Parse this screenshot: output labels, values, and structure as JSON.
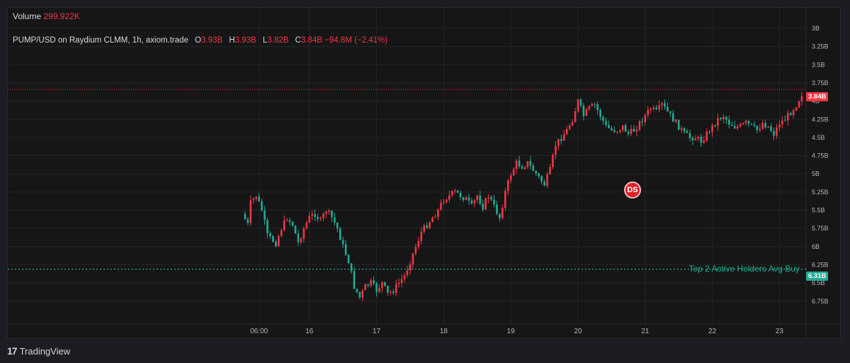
{
  "legend": {
    "volume_label": "Volume",
    "volume_value": "299.922K",
    "symbol": "PUMP/USD on Raydium CLMM, 1h, axiom.trade",
    "o_label": "O",
    "o_value": "3.93B",
    "h_label": "H",
    "h_value": "3.93B",
    "l_label": "L",
    "l_value": "3.82B",
    "c_label": "C",
    "c_value": "3.84B",
    "change": "−94.8M (−2.41%)"
  },
  "price_line": {
    "label": "3.84B",
    "value": 3.84,
    "color": "#f23645"
  },
  "holders_line": {
    "text": "Top 2 Active Holders Avg Buy",
    "label": "6.31B",
    "value": 6.31,
    "color": "#22ab94"
  },
  "badge": {
    "text": "DS"
  },
  "brand": {
    "logo": "17",
    "name": "TradingView"
  },
  "colors": {
    "up": "#f23645",
    "down": "#22ab94",
    "axis_text": "#b2b5be",
    "grid": "#232428"
  },
  "chart_data": {
    "type": "candlestick",
    "y_scale": "inverted",
    "ylim": [
      3.0,
      6.85
    ],
    "y_ticks": [
      "3B",
      "3.25B",
      "3.5B",
      "3.75B",
      "4B",
      "4.25B",
      "4.5B",
      "4.75B",
      "5B",
      "5.25B",
      "5.5B",
      "5.75B",
      "6B",
      "6.25B",
      "6.5B",
      "6.75B"
    ],
    "y_tick_values": [
      3.0,
      3.25,
      3.5,
      3.75,
      4.0,
      4.25,
      4.5,
      4.75,
      5.0,
      5.25,
      5.5,
      5.75,
      6.0,
      6.25,
      6.5,
      6.75
    ],
    "x_ticks": [
      "06:00",
      "16",
      "17",
      "18",
      "19",
      "20",
      "21",
      "22",
      "23"
    ],
    "x_tick_values": [
      6,
      24,
      48,
      72,
      96,
      120,
      144,
      168,
      192
    ],
    "x_unit": "hours",
    "anchors": [
      [
        0,
        5.55
      ],
      [
        2,
        5.7
      ],
      [
        3,
        5.4
      ],
      [
        5,
        5.3
      ],
      [
        7,
        5.5
      ],
      [
        9,
        5.85
      ],
      [
        12,
        5.95
      ],
      [
        14,
        5.75
      ],
      [
        16,
        5.6
      ],
      [
        18,
        5.7
      ],
      [
        20,
        5.95
      ],
      [
        22,
        5.75
      ],
      [
        24,
        5.6
      ],
      [
        26,
        5.55
      ],
      [
        28,
        5.65
      ],
      [
        30,
        5.5
      ],
      [
        32,
        5.6
      ],
      [
        34,
        5.75
      ],
      [
        36,
        6.0
      ],
      [
        38,
        6.2
      ],
      [
        40,
        6.55
      ],
      [
        42,
        6.7
      ],
      [
        44,
        6.55
      ],
      [
        46,
        6.5
      ],
      [
        48,
        6.6
      ],
      [
        50,
        6.5
      ],
      [
        52,
        6.65
      ],
      [
        54,
        6.6
      ],
      [
        56,
        6.5
      ],
      [
        58,
        6.4
      ],
      [
        60,
        6.2
      ],
      [
        62,
        6.0
      ],
      [
        64,
        5.8
      ],
      [
        66,
        5.7
      ],
      [
        68,
        5.6
      ],
      [
        70,
        5.5
      ],
      [
        72,
        5.35
      ],
      [
        74,
        5.3
      ],
      [
        76,
        5.25
      ],
      [
        78,
        5.3
      ],
      [
        80,
        5.35
      ],
      [
        82,
        5.45
      ],
      [
        84,
        5.3
      ],
      [
        86,
        5.45
      ],
      [
        88,
        5.3
      ],
      [
        90,
        5.45
      ],
      [
        92,
        5.6
      ],
      [
        94,
        5.25
      ],
      [
        96,
        5.0
      ],
      [
        98,
        4.85
      ],
      [
        100,
        4.9
      ],
      [
        102,
        4.85
      ],
      [
        104,
        4.95
      ],
      [
        106,
        5.05
      ],
      [
        108,
        5.15
      ],
      [
        110,
        4.95
      ],
      [
        112,
        4.6
      ],
      [
        114,
        4.5
      ],
      [
        116,
        4.4
      ],
      [
        118,
        4.25
      ],
      [
        120,
        4.0
      ],
      [
        122,
        4.2
      ],
      [
        124,
        4.1
      ],
      [
        126,
        4.05
      ],
      [
        128,
        4.2
      ],
      [
        130,
        4.35
      ],
      [
        132,
        4.4
      ],
      [
        134,
        4.4
      ],
      [
        136,
        4.35
      ],
      [
        138,
        4.45
      ],
      [
        140,
        4.4
      ],
      [
        142,
        4.3
      ],
      [
        144,
        4.2
      ],
      [
        146,
        4.1
      ],
      [
        148,
        4.15
      ],
      [
        150,
        4.05
      ],
      [
        152,
        4.15
      ],
      [
        154,
        4.25
      ],
      [
        156,
        4.35
      ],
      [
        158,
        4.45
      ],
      [
        160,
        4.5
      ],
      [
        162,
        4.5
      ],
      [
        164,
        4.55
      ],
      [
        166,
        4.45
      ],
      [
        168,
        4.35
      ],
      [
        170,
        4.25
      ],
      [
        172,
        4.2
      ],
      [
        174,
        4.3
      ],
      [
        176,
        4.35
      ],
      [
        178,
        4.35
      ],
      [
        180,
        4.3
      ],
      [
        182,
        4.35
      ],
      [
        184,
        4.4
      ],
      [
        186,
        4.3
      ],
      [
        188,
        4.35
      ],
      [
        190,
        4.45
      ],
      [
        192,
        4.3
      ],
      [
        194,
        4.25
      ],
      [
        196,
        4.15
      ],
      [
        198,
        4.05
      ],
      [
        200,
        3.9
      ]
    ]
  }
}
